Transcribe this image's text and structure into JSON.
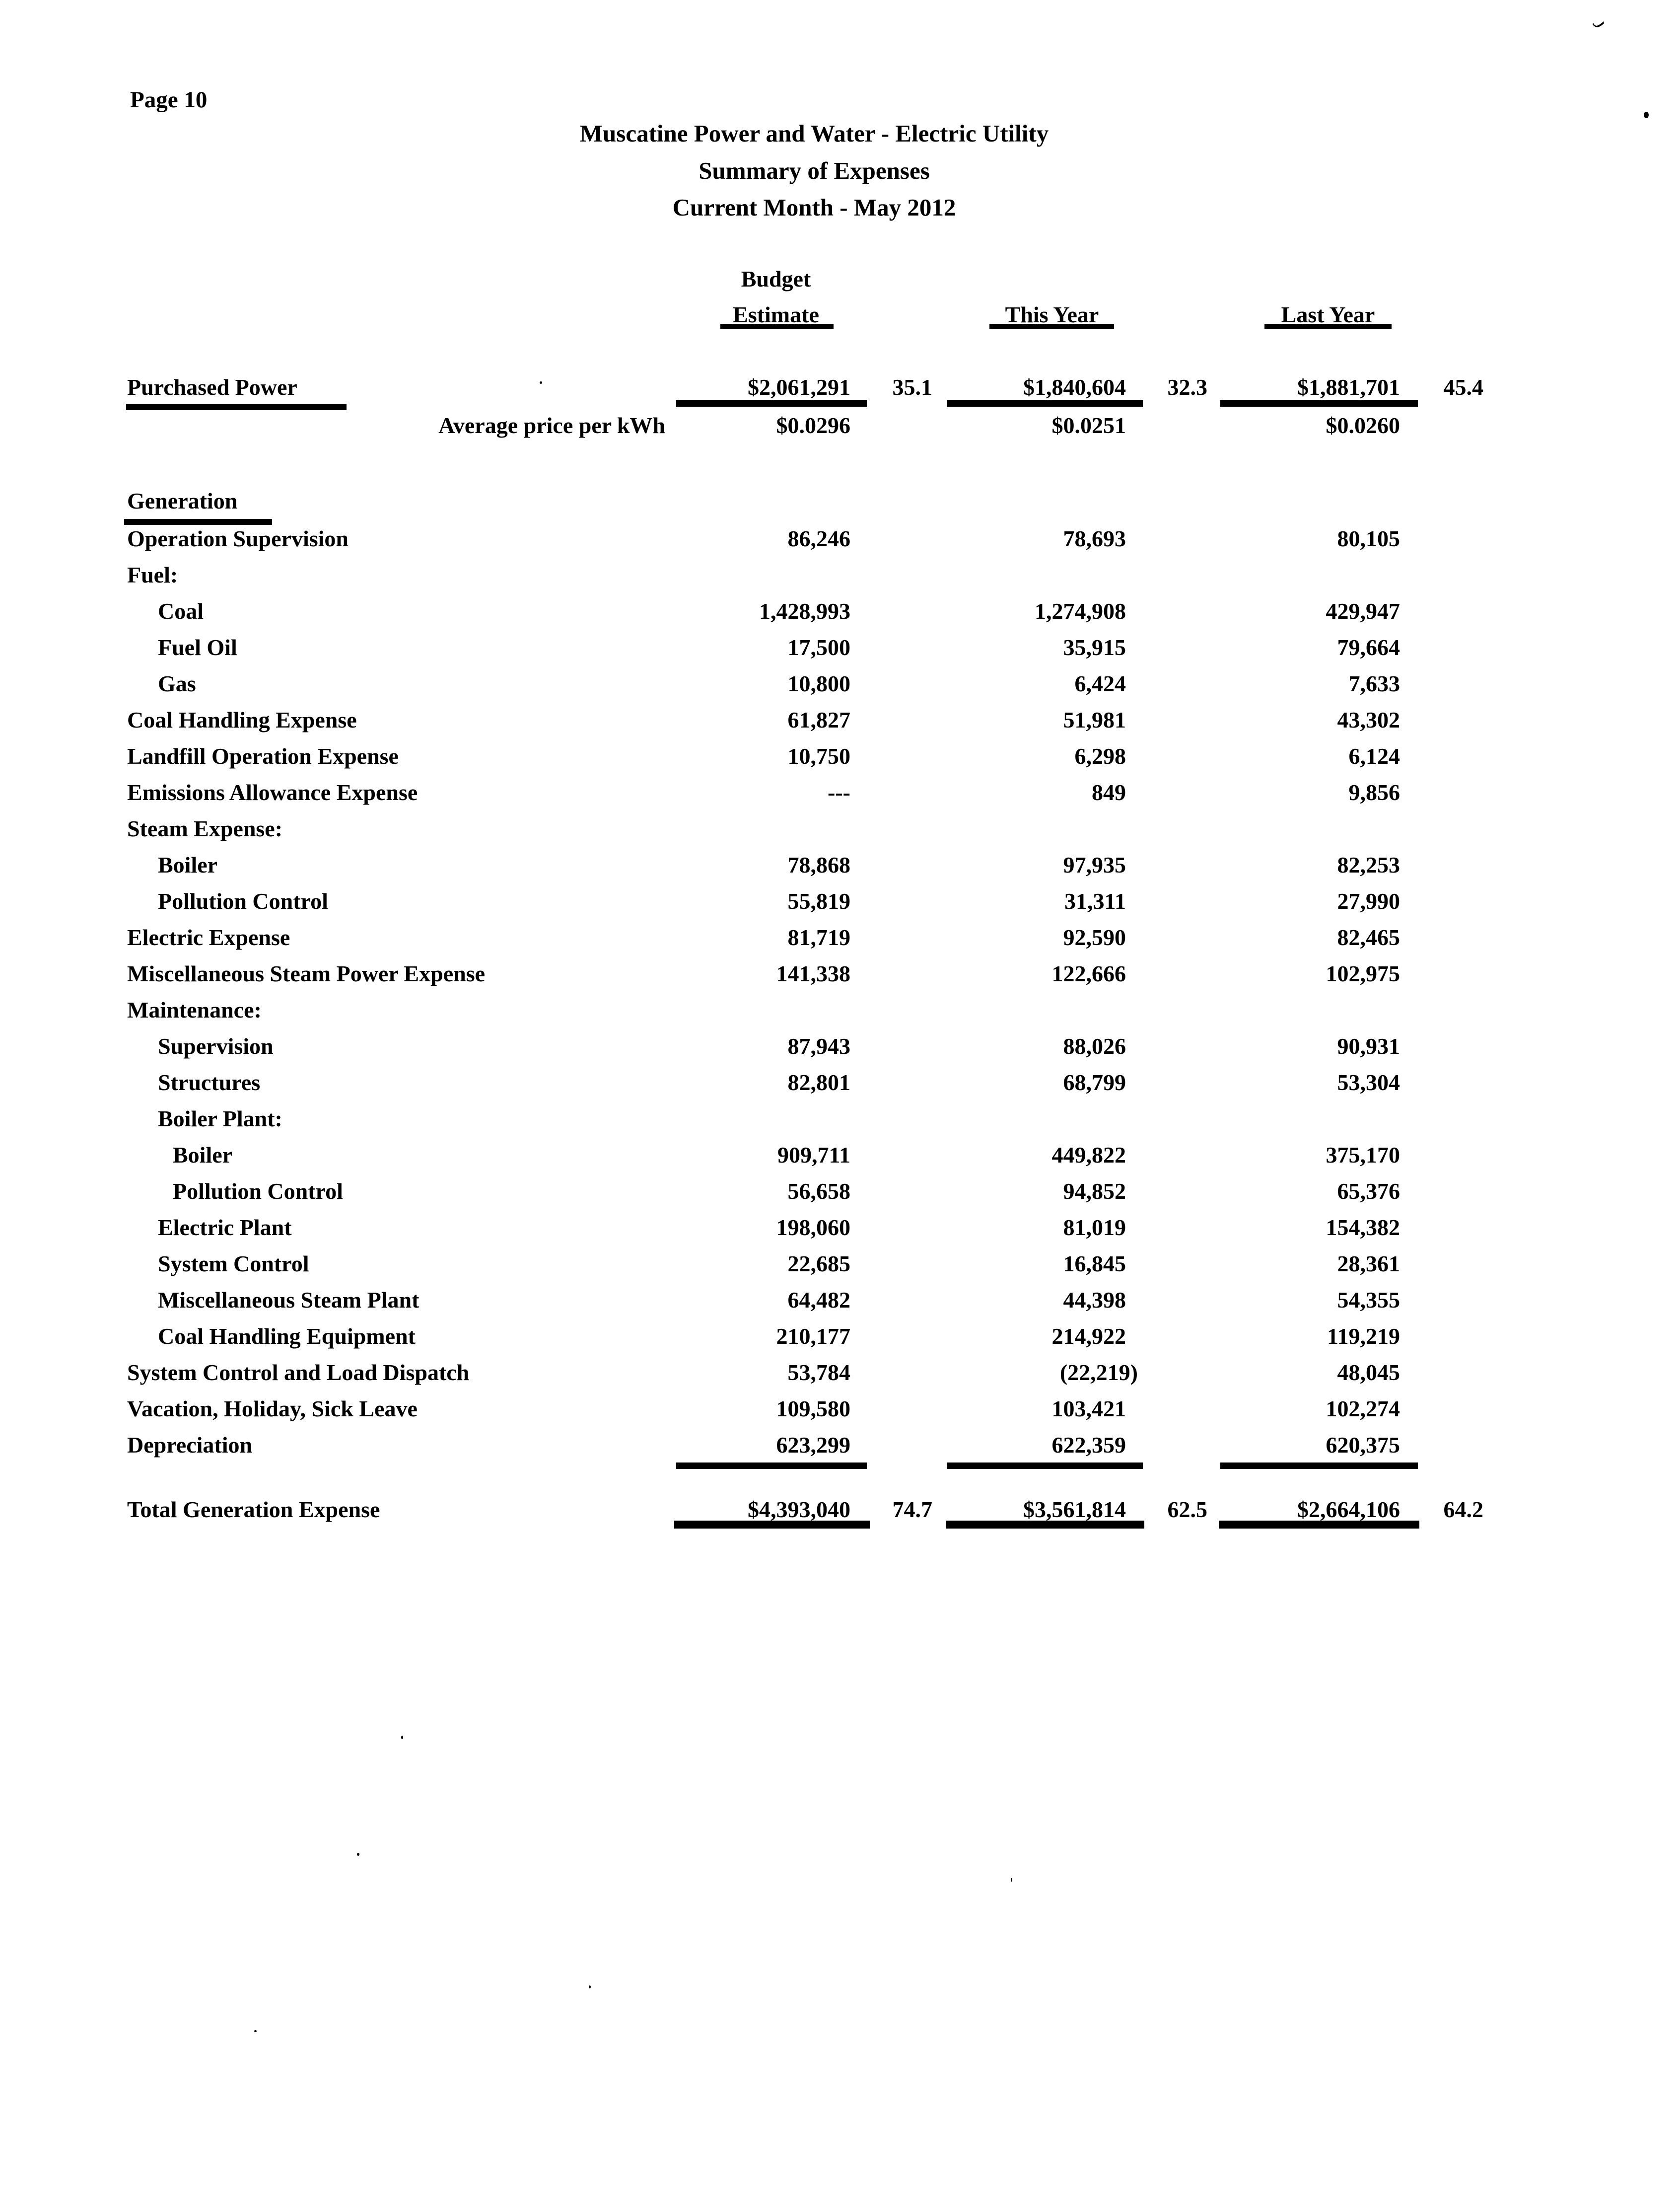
{
  "page": {
    "page_label": "Page 10"
  },
  "header": {
    "title_lines": [
      "Muscatine Power and Water - Electric Utility",
      "Summary of Expenses",
      "Current Month - May 2012"
    ],
    "columns": {
      "budget_top": "Budget",
      "budget_bottom": "Estimate",
      "this_year": "This Year",
      "last_year": "Last Year"
    }
  },
  "purchased_power": {
    "label": "Purchased Power",
    "budget": "$2,061,291",
    "budget_pct": "35.1",
    "this_year": "$1,840,604",
    "this_year_pct": "32.3",
    "last_year": "$1,881,701",
    "last_year_pct": "45.4",
    "avg_price_label": "Average price per kWh",
    "avg_budget": "$0.0296",
    "avg_this_year": "$0.0251",
    "avg_last_year": "$0.0260"
  },
  "generation": {
    "section_label": "Generation",
    "rows": [
      {
        "label": "Operation Supervision",
        "indent": 0,
        "budget": "86,246",
        "this_year": "78,693",
        "last_year": "80,105"
      },
      {
        "label": "Fuel:",
        "indent": 0
      },
      {
        "label": "Coal",
        "indent": 1,
        "budget": "1,428,993",
        "this_year": "1,274,908",
        "last_year": "429,947"
      },
      {
        "label": "Fuel Oil",
        "indent": 1,
        "budget": "17,500",
        "this_year": "35,915",
        "last_year": "79,664"
      },
      {
        "label": "Gas",
        "indent": 1,
        "budget": "10,800",
        "this_year": "6,424",
        "last_year": "7,633"
      },
      {
        "label": "Coal Handling Expense",
        "indent": 0,
        "budget": "61,827",
        "this_year": "51,981",
        "last_year": "43,302"
      },
      {
        "label": "Landfill Operation Expense",
        "indent": 0,
        "budget": "10,750",
        "this_year": "6,298",
        "last_year": "6,124"
      },
      {
        "label": "Emissions Allowance Expense",
        "indent": 0,
        "budget": "---",
        "this_year": "849",
        "last_year": "9,856"
      },
      {
        "label": "Steam Expense:",
        "indent": 0
      },
      {
        "label": "Boiler",
        "indent": 1,
        "budget": "78,868",
        "this_year": "97,935",
        "last_year": "82,253"
      },
      {
        "label": "Pollution Control",
        "indent": 1,
        "budget": "55,819",
        "this_year": "31,311",
        "last_year": "27,990"
      },
      {
        "label": "Electric Expense",
        "indent": 0,
        "budget": "81,719",
        "this_year": "92,590",
        "last_year": "82,465"
      },
      {
        "label": "Miscellaneous Steam Power Expense",
        "indent": 0,
        "budget": "141,338",
        "this_year": "122,666",
        "last_year": "102,975"
      },
      {
        "label": "Maintenance:",
        "indent": 0
      },
      {
        "label": "Supervision",
        "indent": 1,
        "budget": "87,943",
        "this_year": "88,026",
        "last_year": "90,931"
      },
      {
        "label": "Structures",
        "indent": 1,
        "budget": "82,801",
        "this_year": "68,799",
        "last_year": "53,304"
      },
      {
        "label": "Boiler Plant:",
        "indent": 1
      },
      {
        "label": "Boiler",
        "indent": 2,
        "budget": "909,711",
        "this_year": "449,822",
        "last_year": "375,170"
      },
      {
        "label": "Pollution Control",
        "indent": 2,
        "budget": "56,658",
        "this_year": "94,852",
        "last_year": "65,376"
      },
      {
        "label": "Electric Plant",
        "indent": 1,
        "budget": "198,060",
        "this_year": "81,019",
        "last_year": "154,382"
      },
      {
        "label": "System Control",
        "indent": 1,
        "budget": "22,685",
        "this_year": "16,845",
        "last_year": "28,361"
      },
      {
        "label": "Miscellaneous Steam Plant",
        "indent": 1,
        "budget": "64,482",
        "this_year": "44,398",
        "last_year": "54,355"
      },
      {
        "label": "Coal Handling Equipment",
        "indent": 1,
        "budget": "210,177",
        "this_year": "214,922",
        "last_year": "119,219"
      },
      {
        "label": "System Control and Load Dispatch",
        "indent": 0,
        "budget": "53,784",
        "this_year": "(22,219)",
        "last_year": "48,045"
      },
      {
        "label": "Vacation, Holiday, Sick Leave",
        "indent": 0,
        "budget": "109,580",
        "this_year": "103,421",
        "last_year": "102,274"
      },
      {
        "label": "Depreciation",
        "indent": 0,
        "budget": "623,299",
        "this_year": "622,359",
        "last_year": "620,375",
        "underline": true
      }
    ],
    "total": {
      "label": "Total Generation Expense",
      "budget": "$4,393,040",
      "budget_pct": "74.7",
      "this_year": "$3,561,814",
      "this_year_pct": "62.5",
      "last_year": "$2,664,106",
      "last_year_pct": "64.2"
    }
  }
}
